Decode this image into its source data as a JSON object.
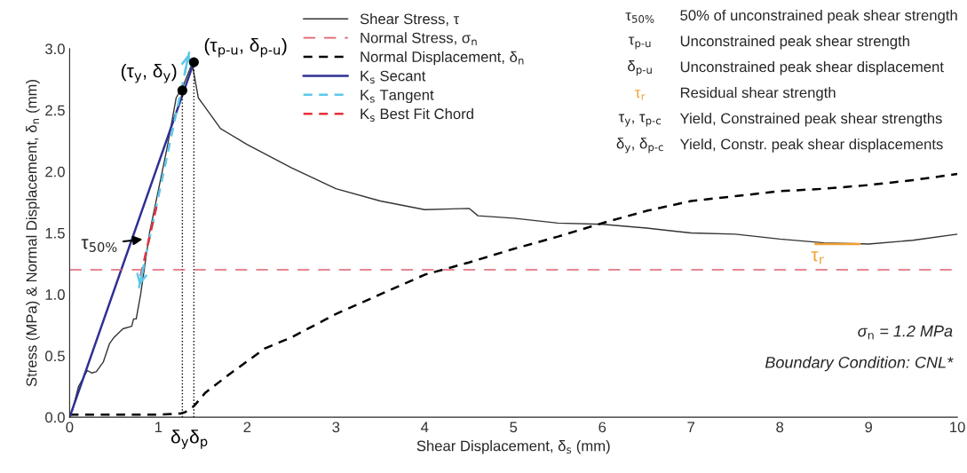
{
  "chart_data": {
    "type": "line",
    "xlabel": "Shear Displacement, δ$_{s}$ (mm)",
    "ylabel": "Stress (MPa) & Normal Displacement, δ$_{n}$ (mm)",
    "xlim": [
      0,
      10
    ],
    "ylim": [
      0,
      3.0
    ],
    "xticks": [
      0,
      1,
      2,
      3,
      4,
      5,
      6,
      7,
      8,
      9,
      10
    ],
    "yticks": [
      {
        "value": 0,
        "label": "0.0"
      },
      0.5,
      {
        "value": 1,
        "label": "1.0"
      },
      1.5,
      {
        "value": 2,
        "label": "2.0"
      },
      2.5,
      {
        "value": 3,
        "label": "3.0"
      }
    ],
    "grid": false,
    "legend": "top",
    "marker": "none",
    "series": [
      {
        "name": "Shear Stress, τ",
        "color": "#333333",
        "line_style": "solid",
        "x": [
          0.03,
          0.1,
          0.2,
          0.25,
          0.3,
          0.38,
          0.45,
          0.5,
          0.6,
          0.7,
          0.72,
          0.75,
          0.8,
          0.9,
          1.0,
          1.1,
          1.2,
          1.28,
          1.38,
          1.45,
          1.5,
          1.7,
          2.0,
          2.5,
          3.0,
          3.5,
          4.0,
          4.5,
          4.6,
          5.0,
          5.5,
          6.0,
          6.5,
          7.0,
          7.5,
          8.0,
          8.5,
          9.0,
          9.5,
          10.0
        ],
        "values": [
          0.05,
          0.25,
          0.38,
          0.36,
          0.37,
          0.45,
          0.6,
          0.65,
          0.72,
          0.74,
          0.8,
          0.8,
          1.0,
          1.5,
          1.85,
          2.2,
          2.6,
          2.7,
          2.88,
          2.6,
          2.55,
          2.35,
          2.22,
          2.03,
          1.86,
          1.76,
          1.69,
          1.7,
          1.64,
          1.62,
          1.58,
          1.57,
          1.54,
          1.5,
          1.49,
          1.45,
          1.42,
          1.41,
          1.44,
          1.49
        ]
      },
      {
        "name": "Normal Displacement, δ$_{n}$",
        "color": "#000000",
        "line_style": "dashed",
        "x": [
          0,
          0.5,
          1.0,
          1.25,
          1.3,
          1.4,
          1.53,
          1.8,
          2.2,
          2.5,
          3.0,
          3.5,
          4.0,
          4.5,
          5.0,
          5.5,
          6.0,
          6.5,
          7.0,
          7.5,
          8.0,
          8.5,
          9.0,
          9.5,
          10.0
        ],
        "values": [
          0.02,
          0.02,
          0.02,
          0.03,
          0.04,
          0.09,
          0.2,
          0.35,
          0.56,
          0.65,
          0.84,
          1.0,
          1.16,
          1.26,
          1.37,
          1.47,
          1.58,
          1.68,
          1.76,
          1.8,
          1.84,
          1.86,
          1.89,
          1.93,
          1.98
        ]
      },
      {
        "name": "K$_{s}$ Secant",
        "color": "#2e3192",
        "line_style": "solid",
        "x": [
          0,
          1.4
        ],
        "values": [
          0,
          2.89
        ]
      },
      {
        "name": "K$_{s}$ Tangent",
        "color": "#5bc8ea",
        "line_style": "dashed",
        "x": [
          0.78,
          1.35
        ],
        "values": [
          1.05,
          2.98
        ]
      },
      {
        "name": "K$_{s}$ Best Fit Chord",
        "color": "#e8303a",
        "line_style": "dashed",
        "x": [
          0.8,
          0.98
        ],
        "values": [
          1.15,
          1.72
        ]
      },
      {
        "type": "scatter",
        "color": "#000000",
        "marker": "circle",
        "x": [
          1.27,
          1.4
        ],
        "values": [
          2.66,
          2.89
        ]
      },
      {
        "color": "#000000",
        "line_style": "dotted",
        "x": [
          1.27,
          1.27
        ],
        "values": [
          0,
          2.66
        ]
      },
      {
        "color": "#000000",
        "line_style": "dotted",
        "x": [
          1.4,
          1.4
        ],
        "values": [
          0,
          2.89
        ]
      },
      {
        "color": "#f0a030",
        "line_style": "solid",
        "x": [
          8.4,
          8.9
        ],
        "values": [
          1.41,
          1.41
        ]
      }
    ],
    "ref_lines": [
      {
        "axis": "y",
        "value": 1.2,
        "label": "Normal Stress, σ$_{n}$",
        "color": "#e06070",
        "line_style": "dashed"
      }
    ],
    "annotations": [
      "τ$_{50%}$",
      "50% of unconstrained peak shear strength",
      "τ$_{p-u}$",
      "Unconstrained peak shear strength",
      "δ$_{p-u}$",
      "Unconstrained peak shear displacement",
      "τ$_{r}$",
      "Residual shear strength",
      "τ$_{y}$, τ$_{p-c}$",
      "Yield, Constrained peak shear strengths",
      "δ$_{y}$, δ$_{p-c}$",
      "Yield, Constr. peak shear displacements",
      "σ$_{n}$ = 1.2 MPa",
      "Boundary Condition: CNL*",
      {
        "text": "(τ$_{y}$, δ$_{y}$)",
        "x": 1.27,
        "y": 2.66
      },
      {
        "text": "(τ$_{p-u}$, δ$_{p-u}$)",
        "x": 1.4,
        "y": 2.89
      },
      {
        "text": "τ$_{50%}$",
        "x": 0.85,
        "y": 1.45
      },
      {
        "text": "τ$_{r}$",
        "x": 8.4,
        "y": 1.41
      },
      {
        "text": "δ$_{y}$",
        "x": 1.27,
        "y": 0
      },
      {
        "text": "δ$_{p}$",
        "x": 1.4,
        "y": 0
      }
    ]
  }
}
